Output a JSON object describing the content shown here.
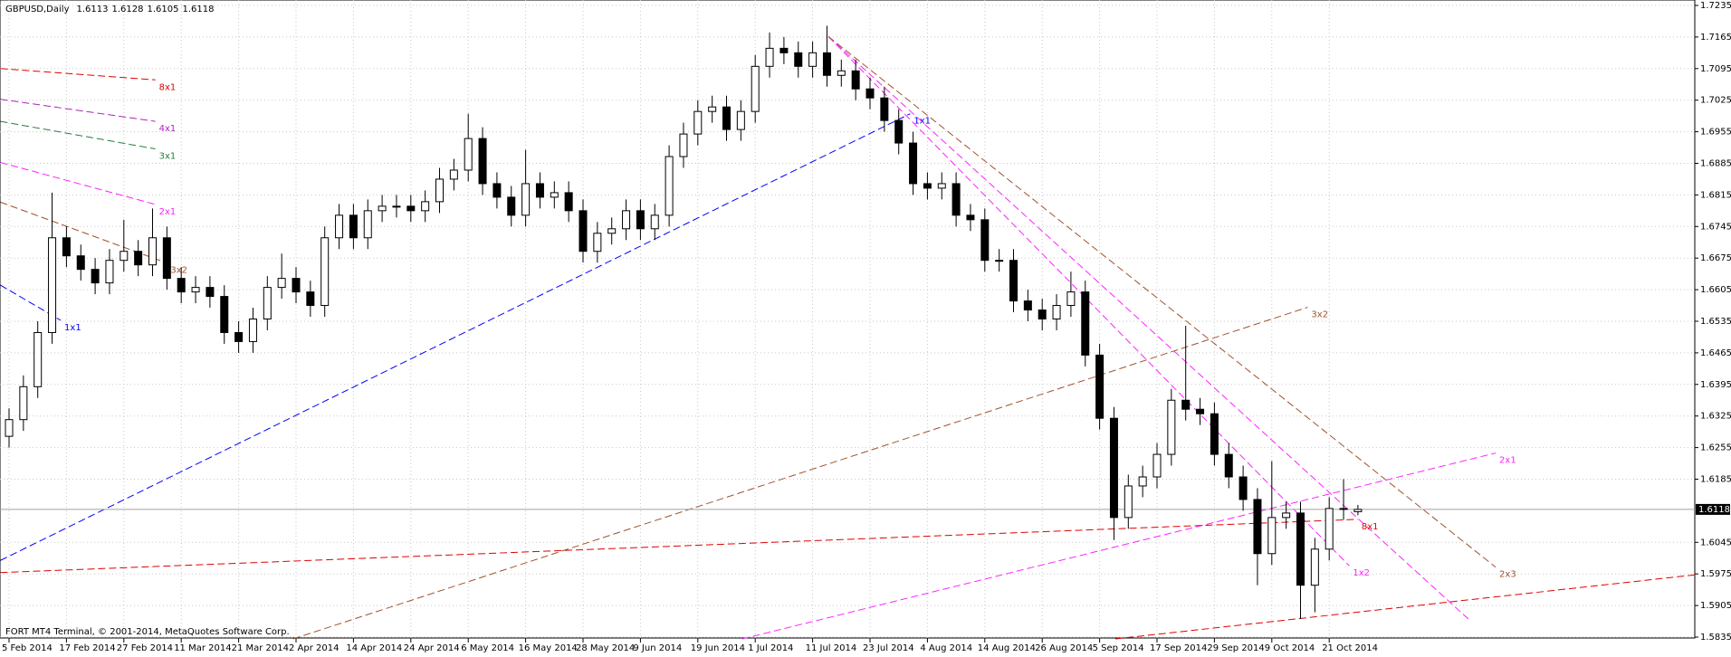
{
  "chart_data": {
    "type": "candlestick",
    "title": "GBPUSD,Daily",
    "footer": "FORT MT4 Terminal, © 2001-2014, MetaQuotes Software Corp.",
    "categories": [
      "5 Feb 2014",
      null,
      null,
      null,
      "17 Feb 2014",
      null,
      null,
      null,
      "27 Feb 2014",
      null,
      null,
      null,
      "11 Mar 2014",
      null,
      null,
      null,
      "21 Mar 2014",
      null,
      null,
      null,
      "2 Apr 2014",
      null,
      null,
      null,
      "14 Apr 2014",
      null,
      null,
      null,
      "24 Apr 2014",
      null,
      null,
      null,
      "6 May 2014",
      null,
      null,
      null,
      "16 May 2014",
      null,
      null,
      null,
      "28 May 2014",
      null,
      null,
      null,
      "9 Jun 2014",
      null,
      null,
      null,
      "19 Jun 2014",
      null,
      null,
      null,
      "1 Jul 2014",
      null,
      null,
      null,
      "11 Jul 2014",
      null,
      null,
      null,
      "23 Jul 2014",
      null,
      null,
      null,
      "4 Aug 2014",
      null,
      null,
      null,
      "14 Aug 2014",
      null,
      null,
      null,
      "26 Aug 2014",
      null,
      null,
      null,
      "5 Sep 2014",
      null,
      null,
      null,
      "17 Sep 2014",
      null,
      null,
      null,
      "29 Sep 2014",
      null,
      null,
      null,
      "9 Oct 2014",
      null,
      null,
      null,
      "21 Oct 2014",
      null,
      null
    ],
    "open": [
      1.628,
      1.6317,
      1.639,
      1.651,
      1.672,
      1.668,
      1.665,
      1.662,
      1.667,
      1.669,
      1.666,
      1.672,
      1.663,
      1.66,
      1.661,
      1.659,
      1.651,
      1.649,
      1.654,
      1.661,
      1.663,
      1.66,
      1.657,
      1.672,
      1.677,
      1.672,
      1.678,
      1.679,
      1.679,
      1.678,
      1.68,
      1.685,
      1.687,
      1.694,
      1.684,
      1.681,
      1.677,
      1.684,
      1.681,
      1.682,
      1.678,
      1.669,
      1.673,
      1.674,
      1.678,
      1.674,
      1.677,
      1.69,
      1.695,
      1.7,
      1.701,
      1.696,
      1.7,
      1.71,
      1.714,
      1.713,
      1.71,
      1.713,
      1.708,
      1.709,
      1.705,
      1.703,
      1.698,
      1.693,
      1.684,
      1.683,
      1.684,
      1.677,
      1.676,
      1.667,
      1.667,
      1.658,
      1.656,
      1.654,
      1.657,
      1.66,
      1.646,
      1.632,
      1.61,
      1.617,
      1.619,
      1.624,
      1.636,
      1.634,
      1.633,
      1.624,
      1.619,
      1.614,
      1.602,
      1.61,
      1.611,
      1.595,
      1.603,
      1.612,
      1.6113
    ],
    "high": [
      1.6342,
      1.6415,
      1.6535,
      1.682,
      1.6745,
      1.6705,
      1.6675,
      1.6695,
      1.676,
      1.6715,
      1.6785,
      1.6745,
      1.6655,
      1.6635,
      1.6635,
      1.6615,
      1.6535,
      1.6565,
      1.6635,
      1.6685,
      1.6655,
      1.6625,
      1.6745,
      1.6795,
      1.6795,
      1.6805,
      1.6815,
      1.6815,
      1.6815,
      1.6825,
      1.6875,
      1.6895,
      1.6995,
      1.6965,
      1.6865,
      1.6835,
      1.6915,
      1.6865,
      1.6845,
      1.6845,
      1.6805,
      1.6755,
      1.6765,
      1.6805,
      1.6805,
      1.6795,
      1.6925,
      1.6975,
      1.7025,
      1.7035,
      1.7035,
      1.7025,
      1.7125,
      1.7175,
      1.7165,
      1.7155,
      1.7155,
      1.719,
      1.7115,
      1.7115,
      1.7075,
      1.7055,
      1.7005,
      1.6955,
      1.6865,
      1.6865,
      1.6865,
      1.6795,
      1.6785,
      1.6695,
      1.6695,
      1.6605,
      1.6585,
      1.6595,
      1.6645,
      1.6625,
      1.6485,
      1.6345,
      1.6195,
      1.6215,
      1.6265,
      1.6385,
      1.6525,
      1.6365,
      1.6355,
      1.6265,
      1.6215,
      1.6165,
      1.6225,
      1.6135,
      1.6135,
      1.6055,
      1.6145,
      1.6185,
      1.6128
    ],
    "low": [
      1.6255,
      1.6292,
      1.6365,
      1.6485,
      1.6655,
      1.6625,
      1.6595,
      1.6595,
      1.6645,
      1.6635,
      1.6635,
      1.6605,
      1.6575,
      1.6575,
      1.6565,
      1.6485,
      1.6465,
      1.6465,
      1.6515,
      1.6585,
      1.6575,
      1.6545,
      1.6545,
      1.6695,
      1.6695,
      1.6695,
      1.6755,
      1.6765,
      1.6755,
      1.6755,
      1.6775,
      1.6825,
      1.6845,
      1.6815,
      1.6785,
      1.6745,
      1.6745,
      1.6785,
      1.6785,
      1.6755,
      1.6665,
      1.6665,
      1.6705,
      1.6715,
      1.6715,
      1.6715,
      1.6745,
      1.6875,
      1.6925,
      1.6975,
      1.6935,
      1.6935,
      1.6975,
      1.7075,
      1.7105,
      1.7075,
      1.7075,
      1.7055,
      1.7055,
      1.7025,
      1.7005,
      1.6955,
      1.6905,
      1.6815,
      1.6805,
      1.6805,
      1.6745,
      1.6735,
      1.6645,
      1.6645,
      1.6555,
      1.6535,
      1.6515,
      1.6515,
      1.6545,
      1.6435,
      1.6295,
      1.605,
      1.6075,
      1.6145,
      1.6165,
      1.6215,
      1.6315,
      1.6305,
      1.6215,
      1.6165,
      1.6115,
      1.595,
      1.5995,
      1.6075,
      1.5875,
      1.589,
      1.6005,
      1.6095,
      1.6105
    ],
    "close": [
      1.6317,
      1.639,
      1.651,
      1.672,
      1.668,
      1.665,
      1.662,
      1.667,
      1.669,
      1.666,
      1.672,
      1.663,
      1.66,
      1.661,
      1.659,
      1.651,
      1.649,
      1.654,
      1.661,
      1.663,
      1.66,
      1.657,
      1.672,
      1.677,
      1.672,
      1.678,
      1.679,
      1.679,
      1.678,
      1.68,
      1.685,
      1.687,
      1.694,
      1.684,
      1.681,
      1.677,
      1.684,
      1.681,
      1.682,
      1.678,
      1.669,
      1.673,
      1.674,
      1.678,
      1.674,
      1.677,
      1.69,
      1.695,
      1.7,
      1.701,
      1.696,
      1.7,
      1.71,
      1.714,
      1.713,
      1.71,
      1.713,
      1.708,
      1.709,
      1.705,
      1.703,
      1.698,
      1.693,
      1.684,
      1.683,
      1.684,
      1.677,
      1.676,
      1.667,
      1.667,
      1.658,
      1.656,
      1.654,
      1.657,
      1.66,
      1.646,
      1.632,
      1.61,
      1.617,
      1.619,
      1.624,
      1.636,
      1.634,
      1.633,
      1.624,
      1.619,
      1.614,
      1.602,
      1.61,
      1.611,
      1.595,
      1.603,
      1.612,
      1.612,
      1.6118
    ],
    "ylim": [
      1.5835,
      1.7235
    ],
    "yticks": [
      1.5835,
      1.5905,
      1.5975,
      1.6045,
      1.6185,
      1.6255,
      1.6325,
      1.6395,
      1.6465,
      1.6535,
      1.6605,
      1.6675,
      1.6745,
      1.6815,
      1.6885,
      1.6955,
      1.7025,
      1.7095,
      1.7165,
      1.7235
    ],
    "grid": true,
    "lines": [
      {
        "label": "1x1",
        "color": "#0000ff",
        "x": [
          -0.6,
          62.8
        ],
        "y": [
          1.6005,
          1.6995
        ]
      },
      {
        "label": "1x1",
        "color": "#0000ff",
        "x": [
          -0.6,
          3.6
        ],
        "y": [
          1.6615,
          1.6537
        ]
      },
      {
        "label": "8x1",
        "color": "#e00000",
        "x": [
          -0.6,
          10.2
        ],
        "y": [
          1.7095,
          1.707
        ]
      },
      {
        "label": "4x1",
        "color": "#b020c0",
        "x": [
          -0.6,
          10.2
        ],
        "y": [
          1.7027,
          1.6978
        ]
      },
      {
        "label": "3x1",
        "color": "#208040",
        "x": [
          -0.6,
          10.2
        ],
        "y": [
          1.6978,
          1.6917
        ]
      },
      {
        "label": "2x1",
        "color": "#ff20ff",
        "x": [
          -0.6,
          10.2
        ],
        "y": [
          1.6887,
          1.6794
        ]
      },
      {
        "label": "3x2",
        "color": "#a0522d",
        "x": [
          -0.6,
          11.0
        ],
        "y": [
          1.6799,
          1.6664
        ]
      },
      {
        "label": "1x2",
        "color": "#ff20ff",
        "x": [
          57.1,
          93.4
        ],
        "y": [
          1.7166,
          1.5993
        ]
      },
      {
        "label": null,
        "color": "#ff20ff",
        "x": [
          57.1,
          101.7
        ],
        "y": [
          1.7166,
          1.5875
        ]
      },
      {
        "label": "2x3",
        "color": "#a0522d",
        "x": [
          57.1,
          103.6
        ],
        "y": [
          1.7166,
          1.599
        ]
      },
      {
        "label": "3x2",
        "color": "#a0522d",
        "x": [
          19.8,
          90.5
        ],
        "y": [
          1.5831,
          1.6566
        ]
      },
      {
        "label": "2x1",
        "color": "#ff20ff",
        "x": [
          51.1,
          103.6
        ],
        "y": [
          1.5831,
          1.6243
        ]
      },
      {
        "label": "8x1",
        "color": "#e00000",
        "x": [
          -0.6,
          94.0
        ],
        "y": [
          1.5978,
          1.6096
        ]
      },
      {
        "label": null,
        "color": "#e00000",
        "x": [
          77.1,
          117.5
        ],
        "y": [
          1.5831,
          1.5973
        ]
      }
    ]
  }
}
